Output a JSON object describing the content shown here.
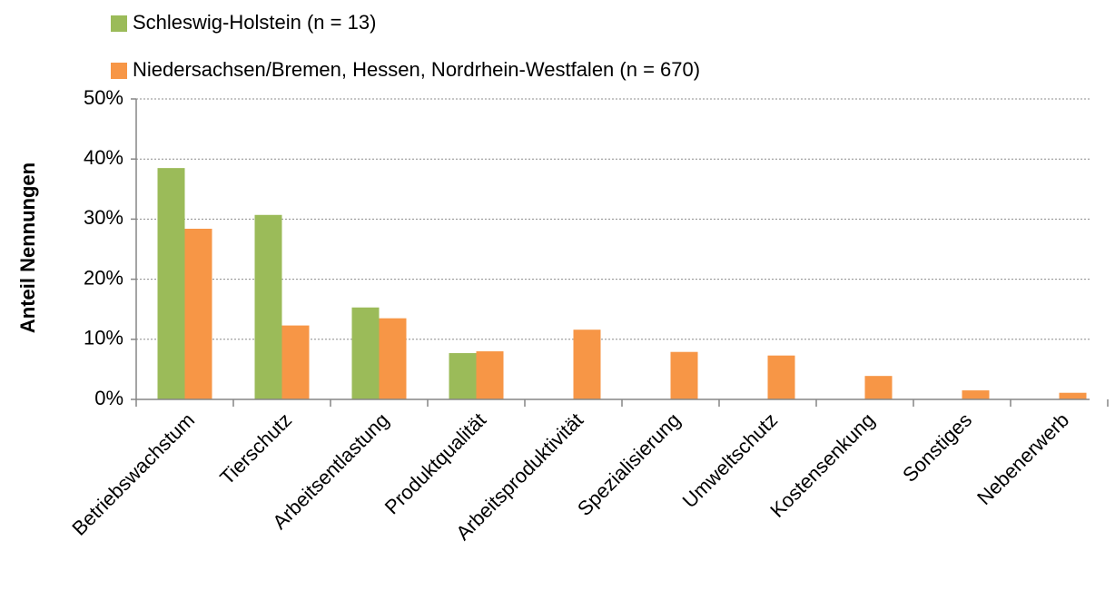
{
  "chart_data": {
    "type": "bar",
    "y_label": "Anteil Nennungen",
    "categories": [
      "Betriebswachstum",
      "Tierschutz",
      "Arbeitsentlastung",
      "Produktqualität",
      "Arbeitsproduktivität",
      "Spezialisierung",
      "Umweltschutz",
      "Kostensenkung",
      "Sonstiges",
      "Nebenerwerb"
    ],
    "series": [
      {
        "name": "Schleswig-Holstein (n = 13)",
        "color": "#9bbb59",
        "values": [
          38.5,
          30.7,
          15.3,
          7.7,
          null,
          null,
          null,
          null,
          null,
          null
        ]
      },
      {
        "name": "Niedersachsen/Bremen, Hessen, Nordrhein-Westfalen (n = 670)",
        "color": "#f79646",
        "values": [
          28.4,
          12.3,
          13.5,
          8.0,
          11.6,
          7.9,
          7.3,
          3.9,
          1.5,
          1.1
        ]
      }
    ],
    "ylim": [
      0,
      50
    ],
    "yticks": [
      {
        "value": 0,
        "label": "0%"
      },
      {
        "value": 10,
        "label": "10%"
      },
      {
        "value": 20,
        "label": "20%"
      },
      {
        "value": 30,
        "label": "30%"
      },
      {
        "value": 40,
        "label": "40%"
      },
      {
        "value": 50,
        "label": "50%"
      }
    ],
    "grid": true,
    "legend": "top"
  }
}
